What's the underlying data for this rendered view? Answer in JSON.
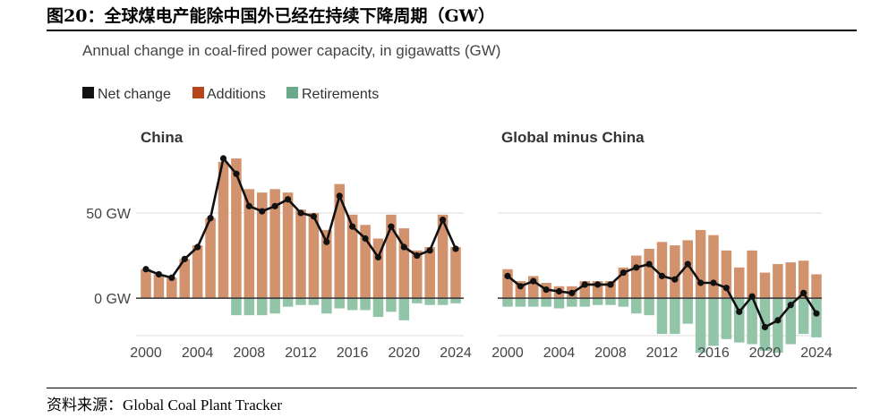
{
  "figure": {
    "title": "图20：全球煤电产能除中国外已经在持续下降周期（GW）",
    "source_label": "资料来源：",
    "source_value": "Global Coal Plant Tracker"
  },
  "colors": {
    "net": "#111111",
    "additions": "#d1926d",
    "retirements": "#92c4a8",
    "legend_additions": "#b5461c",
    "legend_retirements": "#6aa98a",
    "axis_text": "#444444",
    "gridline": "#dddddd"
  },
  "chart_data": {
    "type": "bar",
    "subtitle": "Annual change in coal-fired power capacity, in gigawatts (GW)",
    "legend": [
      "Net change",
      "Additions",
      "Retirements"
    ],
    "legend_position": "top-left",
    "ylim": [
      -22,
      92
    ],
    "yticks": [
      {
        "v": 0,
        "label": "0 GW"
      },
      {
        "v": 50,
        "label": "50 GW"
      }
    ],
    "years": [
      2000,
      2001,
      2002,
      2003,
      2004,
      2005,
      2006,
      2007,
      2008,
      2009,
      2010,
      2011,
      2012,
      2013,
      2014,
      2015,
      2016,
      2017,
      2018,
      2019,
      2020,
      2021,
      2022,
      2023,
      2024
    ],
    "xticks": [
      2000,
      2004,
      2008,
      2012,
      2016,
      2020,
      2024
    ],
    "panels": [
      {
        "name": "China",
        "additions": [
          17,
          14,
          12,
          23,
          31,
          47,
          80,
          82,
          64,
          62,
          64,
          62,
          52,
          50,
          40,
          67,
          49,
          43,
          35,
          49,
          41,
          28,
          30,
          49,
          30
        ],
        "retirements": [
          0,
          0,
          0,
          0,
          0,
          0,
          0,
          -10,
          -10,
          -10,
          -9,
          -5,
          -4,
          -4,
          -9,
          -6,
          -7,
          -7,
          -11,
          -8,
          -13,
          -3,
          -4,
          -4,
          -3
        ],
        "net": [
          17,
          14,
          12,
          23,
          30,
          47,
          82,
          73,
          54,
          51,
          54,
          58,
          50,
          48,
          33,
          60,
          42,
          35,
          24,
          42,
          30,
          25,
          28,
          46,
          29
        ]
      },
      {
        "name": "Global minus China",
        "additions": [
          17,
          10,
          13,
          9,
          7,
          7,
          10,
          10,
          10,
          18,
          25,
          29,
          33,
          31,
          34,
          40,
          37,
          28,
          18,
          28,
          15,
          20,
          21,
          22,
          14
        ],
        "retirements": [
          -5,
          -5,
          -5,
          -5,
          -6,
          -5,
          -5,
          -4,
          -4,
          -5,
          -9,
          -10,
          -21,
          -21,
          -15,
          -32,
          -28,
          -24,
          -26,
          -27,
          -31,
          -32,
          -27,
          -21,
          -23
        ],
        "net": [
          13,
          7,
          10,
          5,
          4,
          3,
          8,
          8,
          8,
          15,
          18,
          20,
          13,
          11,
          20,
          9,
          9,
          6,
          -8,
          1,
          -17,
          -13,
          -4,
          3,
          -9
        ]
      }
    ]
  }
}
